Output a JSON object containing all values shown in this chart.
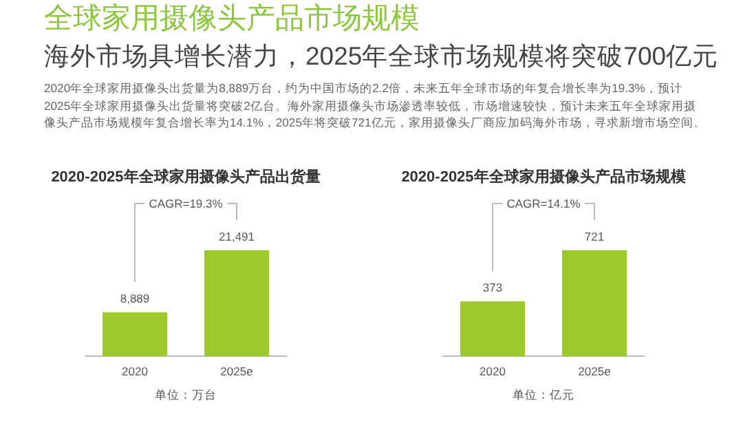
{
  "chart_data": [
    {
      "type": "other",
      "title": "全球家用摄像头产品市场规模",
      "subtitle": "海外市场具增长潜力，2025年全球市场规模将突破700亿元",
      "annotations": [
        "2020年全球家用摄像头出货量为8,889万台，约为中国市场的2.2倍，未来五年全球市场的年复合增长率为19.3%，预计2025年全球家用摄像头出货量将突破2亿台。海外家用摄像头市场渗透率较低，市场增速较快，预计未来五年全球家用摄像头产品市场规模年复合增长率为14.1%，2025年将突破721亿元，家用摄像头厂商应加码海外市场，寻求新增市场空间。"
      ]
    },
    {
      "type": "bar",
      "title": "2020-2025年全球家用摄像头产品出货量",
      "categories": [
        "2020",
        "2025e"
      ],
      "values": [
        8889,
        21491
      ],
      "value_labels": [
        "8,889",
        "21,491"
      ],
      "color": "#9ec92b",
      "annotations": [
        "CAGR=19.3%",
        "单位：万台"
      ]
    },
    {
      "type": "bar",
      "title": "2020-2025年全球家用摄像头产品市场规模",
      "categories": [
        "2020",
        "2025e"
      ],
      "values": [
        373,
        721
      ],
      "data_labels": true,
      "color": "#9ec92b",
      "annotations": [
        "CAGR=14.1%",
        "单位：亿元"
      ]
    }
  ]
}
